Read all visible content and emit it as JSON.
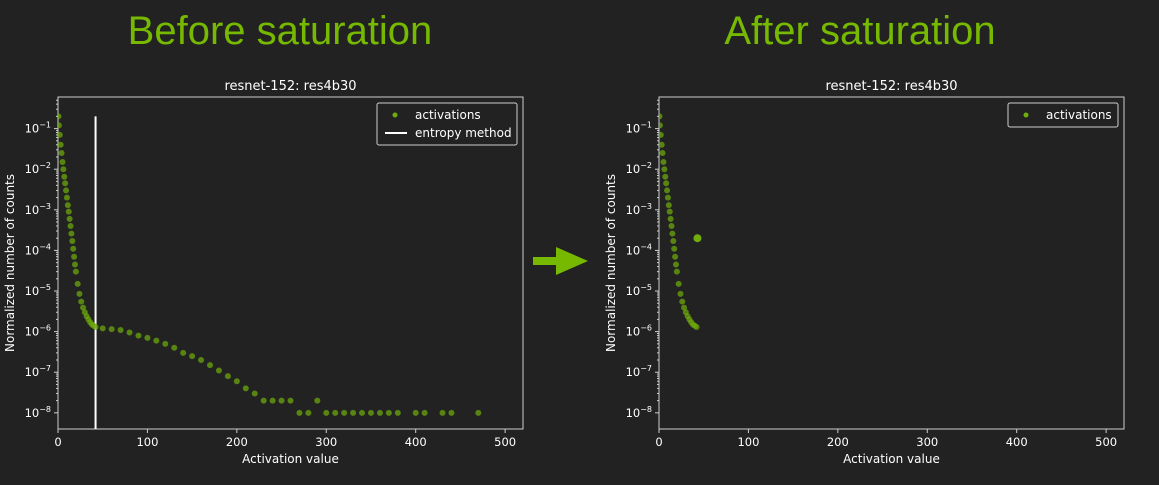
{
  "headlines": {
    "left": "Before saturation",
    "right": "After saturation",
    "color": "#76b900"
  },
  "arrow": {
    "icon": "right-arrow-icon",
    "color": "#76b900"
  },
  "colors": {
    "background": "#222222",
    "axes": "#cfcfcf",
    "text": "#ffffff",
    "points": "#6fae0a",
    "threshold_line": "#ffffff"
  },
  "chart_data": [
    {
      "type": "scatter",
      "title": "resnet-152: res4b30",
      "xlabel": "Activation value",
      "ylabel": "Normalized number of counts",
      "xlim": [
        0,
        520
      ],
      "ylim": [
        4e-09,
        0.6
      ],
      "yscale": "log",
      "xticks": [
        0,
        100,
        200,
        300,
        400,
        500
      ],
      "yticks": [
        {
          "base": "10",
          "exp": "−1",
          "value": 0.1
        },
        {
          "base": "10",
          "exp": "−2",
          "value": 0.01
        },
        {
          "base": "10",
          "exp": "−3",
          "value": 0.001
        },
        {
          "base": "10",
          "exp": "−4",
          "value": 0.0001
        },
        {
          "base": "10",
          "exp": "−5",
          "value": 1e-05
        },
        {
          "base": "10",
          "exp": "−6",
          "value": 1e-06
        },
        {
          "base": "10",
          "exp": "−7",
          "value": 1e-07
        },
        {
          "base": "10",
          "exp": "−8",
          "value": 1e-08
        }
      ],
      "grid": false,
      "legend": {
        "position": "top-right",
        "entries": [
          {
            "label": "activations",
            "kind": "point"
          },
          {
            "label": "entropy method",
            "kind": "line"
          }
        ]
      },
      "series": [
        {
          "name": "activations",
          "points": [
            [
              0.5,
              0.2
            ],
            [
              1,
              0.12
            ],
            [
              2,
              0.07
            ],
            [
              3,
              0.04
            ],
            [
              4,
              0.025
            ],
            [
              5,
              0.015
            ],
            [
              6,
              0.01
            ],
            [
              7,
              0.0065
            ],
            [
              8,
              0.0045
            ],
            [
              9,
              0.003
            ],
            [
              10,
              0.002
            ],
            [
              11,
              0.0013
            ],
            [
              12,
              0.0009
            ],
            [
              13,
              0.0006
            ],
            [
              14,
              0.0004
            ],
            [
              15,
              0.00026
            ],
            [
              16,
              0.00017
            ],
            [
              17,
              0.00011
            ],
            [
              18,
              7e-05
            ],
            [
              19,
              4.5e-05
            ],
            [
              20,
              3e-05
            ],
            [
              22,
              1.5e-05
            ],
            [
              24,
              8.5e-06
            ],
            [
              26,
              5.5e-06
            ],
            [
              28,
              3.9e-06
            ],
            [
              30,
              3e-06
            ],
            [
              32,
              2.4e-06
            ],
            [
              34,
              2e-06
            ],
            [
              36,
              1.7e-06
            ],
            [
              38,
              1.5e-06
            ],
            [
              40,
              1.4e-06
            ],
            [
              42,
              1.3e-06
            ],
            [
              50,
              1.2e-06
            ],
            [
              60,
              1.15e-06
            ],
            [
              70,
              1.1e-06
            ],
            [
              80,
              9.5e-07
            ],
            [
              90,
              8e-07
            ],
            [
              100,
              7e-07
            ],
            [
              110,
              6e-07
            ],
            [
              120,
              5e-07
            ],
            [
              130,
              4e-07
            ],
            [
              140,
              3e-07
            ],
            [
              150,
              2.5e-07
            ],
            [
              160,
              2e-07
            ],
            [
              170,
              1.5e-07
            ],
            [
              180,
              1.1e-07
            ],
            [
              190,
              8e-08
            ],
            [
              200,
              6e-08
            ],
            [
              210,
              4e-08
            ],
            [
              220,
              3e-08
            ],
            [
              230,
              2e-08
            ],
            [
              240,
              2e-08
            ],
            [
              250,
              2e-08
            ],
            [
              260,
              2e-08
            ],
            [
              270,
              1e-08
            ],
            [
              280,
              1e-08
            ],
            [
              290,
              2e-08
            ],
            [
              300,
              1e-08
            ],
            [
              310,
              1e-08
            ],
            [
              320,
              1e-08
            ],
            [
              330,
              1e-08
            ],
            [
              340,
              1e-08
            ],
            [
              350,
              1e-08
            ],
            [
              360,
              1e-08
            ],
            [
              370,
              1e-08
            ],
            [
              380,
              1e-08
            ],
            [
              400,
              1e-08
            ],
            [
              410,
              1e-08
            ],
            [
              430,
              1e-08
            ],
            [
              440,
              1e-08
            ],
            [
              470,
              1e-08
            ]
          ]
        }
      ],
      "threshold": {
        "name": "entropy method",
        "x": 42,
        "y_range": [
          4e-09,
          0.2
        ]
      }
    },
    {
      "type": "scatter",
      "title": "resnet-152: res4b30",
      "xlabel": "Activation value",
      "ylabel": "Normalized number of counts",
      "xlim": [
        0,
        520
      ],
      "ylim": [
        4e-09,
        0.6
      ],
      "yscale": "log",
      "xticks": [
        0,
        100,
        200,
        300,
        400,
        500
      ],
      "yticks": [
        {
          "base": "10",
          "exp": "−1",
          "value": 0.1
        },
        {
          "base": "10",
          "exp": "−2",
          "value": 0.01
        },
        {
          "base": "10",
          "exp": "−3",
          "value": 0.001
        },
        {
          "base": "10",
          "exp": "−4",
          "value": 0.0001
        },
        {
          "base": "10",
          "exp": "−5",
          "value": 1e-05
        },
        {
          "base": "10",
          "exp": "−6",
          "value": 1e-06
        },
        {
          "base": "10",
          "exp": "−7",
          "value": 1e-07
        },
        {
          "base": "10",
          "exp": "−8",
          "value": 1e-08
        }
      ],
      "grid": false,
      "legend": {
        "position": "top-right",
        "entries": [
          {
            "label": "activations",
            "kind": "point"
          }
        ]
      },
      "series": [
        {
          "name": "activations",
          "points": [
            [
              0.5,
              0.2
            ],
            [
              1,
              0.12
            ],
            [
              2,
              0.07
            ],
            [
              3,
              0.04
            ],
            [
              4,
              0.025
            ],
            [
              5,
              0.015
            ],
            [
              6,
              0.01
            ],
            [
              7,
              0.0065
            ],
            [
              8,
              0.0045
            ],
            [
              9,
              0.003
            ],
            [
              10,
              0.002
            ],
            [
              11,
              0.0013
            ],
            [
              12,
              0.0009
            ],
            [
              13,
              0.0006
            ],
            [
              14,
              0.0004
            ],
            [
              15,
              0.00026
            ],
            [
              16,
              0.00017
            ],
            [
              17,
              0.00011
            ],
            [
              18,
              7e-05
            ],
            [
              19,
              4.5e-05
            ],
            [
              20,
              3e-05
            ],
            [
              22,
              1.5e-05
            ],
            [
              24,
              8.5e-06
            ],
            [
              26,
              5.5e-06
            ],
            [
              28,
              3.9e-06
            ],
            [
              30,
              3e-06
            ],
            [
              32,
              2.4e-06
            ],
            [
              34,
              2e-06
            ],
            [
              36,
              1.7e-06
            ],
            [
              38,
              1.5e-06
            ],
            [
              40,
              1.4e-06
            ],
            [
              42,
              1.3e-06
            ]
          ]
        }
      ],
      "saturated_point": {
        "x": 43,
        "y": 0.0002
      }
    }
  ]
}
